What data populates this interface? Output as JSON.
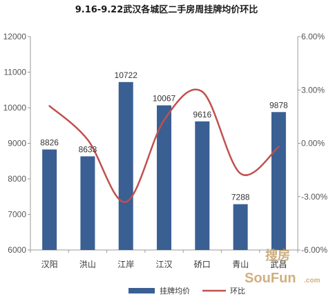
{
  "chart_data": {
    "type": "bar",
    "title": "9.16-9.22武汉各城区二手房周挂牌均价环比",
    "categories": [
      "汉阳",
      "洪山",
      "江岸",
      "江汉",
      "硚口",
      "青山",
      "武昌"
    ],
    "series": [
      {
        "name": "挂牌均价",
        "type": "bar",
        "axis": "left",
        "color": "#3a5f93",
        "values": [
          8826,
          8633,
          10722,
          10067,
          9616,
          7288,
          9878
        ],
        "labels": [
          "8826",
          "8633",
          "10722",
          "10067",
          "9616",
          "7288",
          "9878"
        ]
      },
      {
        "name": "环比",
        "type": "line",
        "axis": "right",
        "smooth": true,
        "color": "#c0504d",
        "values": [
          2.1,
          0.2,
          -3.3,
          1.3,
          2.9,
          -1.7,
          -0.2
        ]
      }
    ],
    "left_axis": {
      "min": 6000,
      "max": 12000,
      "step": 1000,
      "ticks": [
        "6000",
        "7000",
        "8000",
        "9000",
        "10000",
        "11000",
        "12000"
      ]
    },
    "right_axis": {
      "min": -6,
      "max": 6,
      "step": 3,
      "ticks": [
        "-6.00%",
        "-3.00%",
        "0.00%",
        "3.00%",
        "6.00%"
      ]
    },
    "grid": false,
    "legend": "bottom"
  },
  "watermark": {
    "line1": "搜房",
    "line2": "SouFun",
    "line3": ".com"
  }
}
